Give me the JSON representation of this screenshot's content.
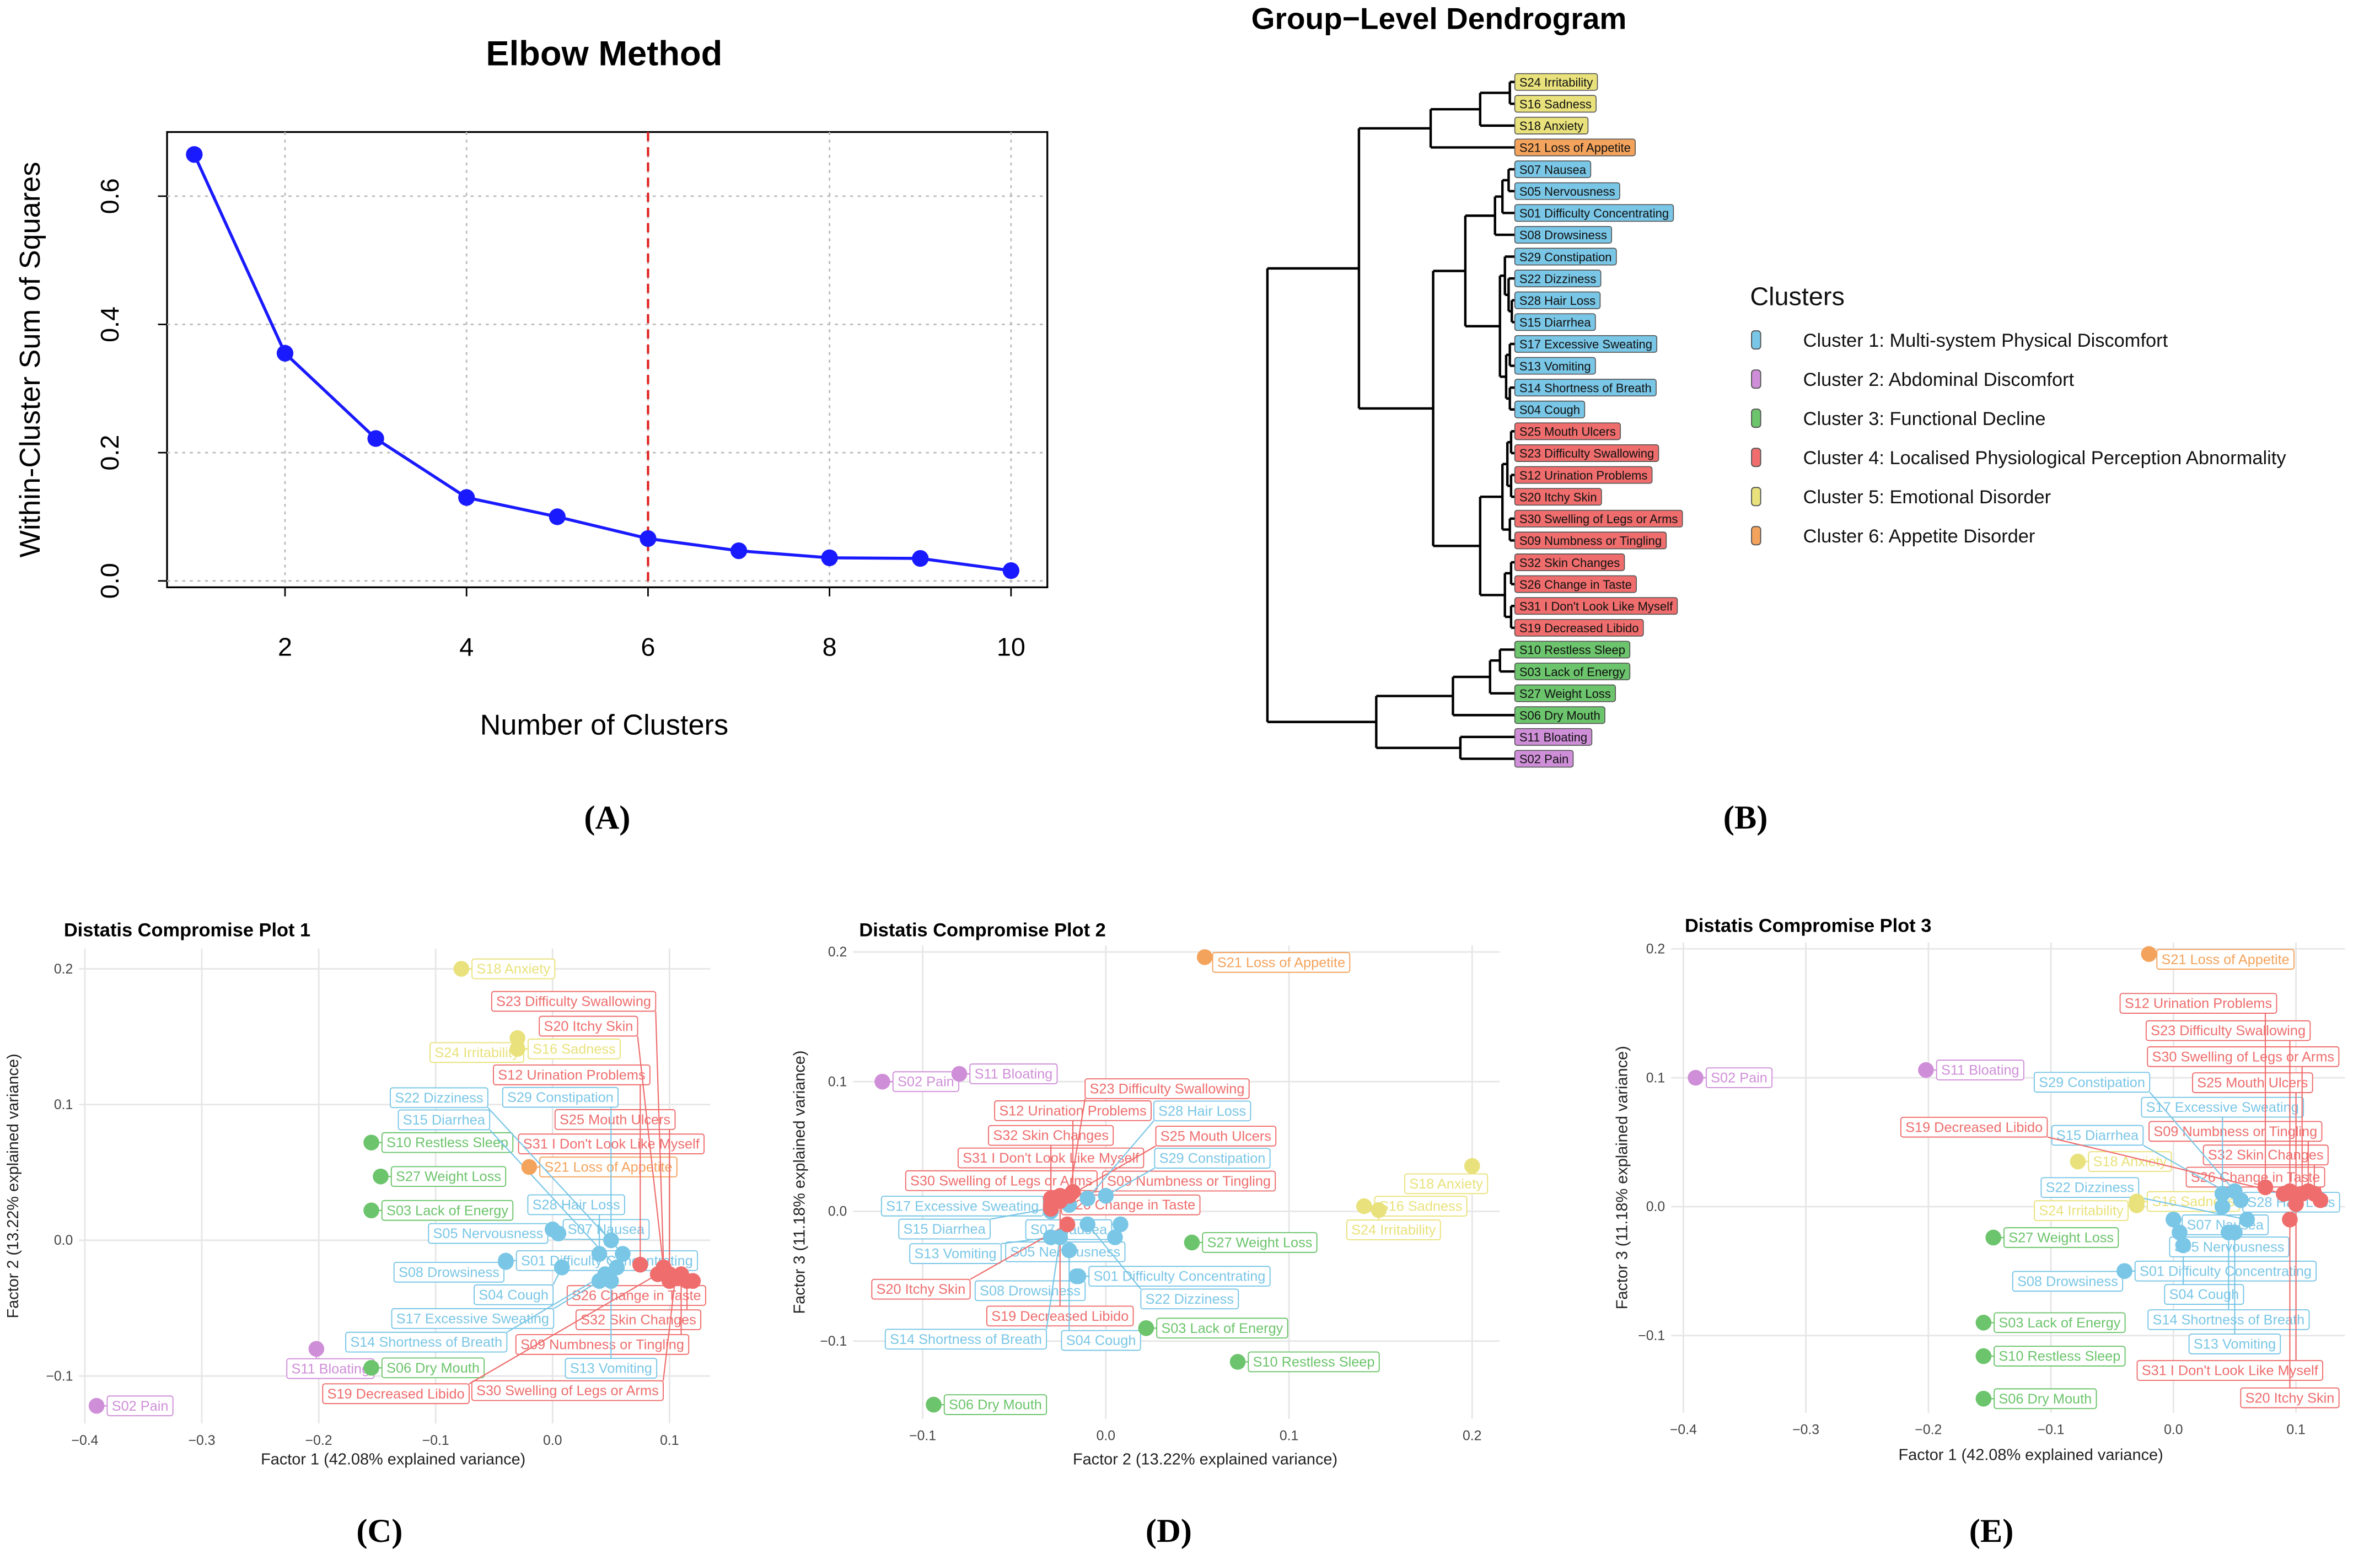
{
  "panels": {
    "a": "(A)",
    "b": "(B)",
    "c": "(C)",
    "d": "(D)",
    "e": "(E)"
  },
  "colors": {
    "cluster_1": "#79c6e6",
    "cluster_2": "#cf8fd8",
    "cluster_3": "#6cc46c",
    "cluster_4": "#ef6d6d",
    "cluster_5": "#e9e27c",
    "cluster_6": "#f4a35c",
    "elbow_line": "#1a1aff",
    "elbow_cut": "#e02020"
  },
  "chart_data": [
    {
      "type": "line",
      "title": "Elbow Method",
      "xlabel": "Number of Clusters",
      "ylabel": "Within-Cluster Sum of Squares",
      "x": [
        1,
        2,
        3,
        4,
        5,
        6,
        7,
        8,
        9,
        10
      ],
      "y": [
        0.665,
        0.355,
        0.222,
        0.13,
        0.1,
        0.066,
        0.047,
        0.036,
        0.035,
        0.016
      ],
      "xticks": [
        "2",
        "4",
        "6",
        "8",
        "10"
      ],
      "yticks": [
        "0.0",
        "0.2",
        "0.4",
        "0.6"
      ],
      "xlim": [
        0.7,
        10.4
      ],
      "ylim": [
        -0.01,
        0.7
      ],
      "vline_x": 6
    },
    {
      "type": "dendrogram",
      "title": "Group−Level Dendrogram",
      "leaves": [
        {
          "label": "S24 Irritability",
          "cluster": 5
        },
        {
          "label": "S16 Sadness",
          "cluster": 5
        },
        {
          "label": "S18 Anxiety",
          "cluster": 5
        },
        {
          "label": "S21 Loss of Appetite",
          "cluster": 6
        },
        {
          "label": "S07 Nausea",
          "cluster": 1
        },
        {
          "label": "S05 Nervousness",
          "cluster": 1
        },
        {
          "label": "S01 Difficulty Concentrating",
          "cluster": 1
        },
        {
          "label": "S08 Drowsiness",
          "cluster": 1
        },
        {
          "label": "S29 Constipation",
          "cluster": 1
        },
        {
          "label": "S22 Dizziness",
          "cluster": 1
        },
        {
          "label": "S28 Hair Loss",
          "cluster": 1
        },
        {
          "label": "S15 Diarrhea",
          "cluster": 1
        },
        {
          "label": "S17 Excessive Sweating",
          "cluster": 1
        },
        {
          "label": "S13 Vomiting",
          "cluster": 1
        },
        {
          "label": "S14 Shortness of Breath",
          "cluster": 1
        },
        {
          "label": "S04 Cough",
          "cluster": 1
        },
        {
          "label": "S25 Mouth Ulcers",
          "cluster": 4
        },
        {
          "label": "S23 Difficulty Swallowing",
          "cluster": 4
        },
        {
          "label": "S12 Urination Problems",
          "cluster": 4
        },
        {
          "label": "S20 Itchy Skin",
          "cluster": 4
        },
        {
          "label": "S30 Swelling of Legs or Arms",
          "cluster": 4
        },
        {
          "label": "S09 Numbness or Tingling",
          "cluster": 4
        },
        {
          "label": "S32 Skin Changes",
          "cluster": 4
        },
        {
          "label": "S26 Change in Taste",
          "cluster": 4
        },
        {
          "label": "S31 I Don't Look Like Myself",
          "cluster": 4
        },
        {
          "label": "S19 Decreased Libido",
          "cluster": 4
        },
        {
          "label": "S10 Restless Sleep",
          "cluster": 3
        },
        {
          "label": "S03 Lack of Energy",
          "cluster": 3
        },
        {
          "label": "S27 Weight Loss",
          "cluster": 3
        },
        {
          "label": "S06 Dry Mouth",
          "cluster": 3
        },
        {
          "label": "S11 Bloating",
          "cluster": 2
        },
        {
          "label": "S02 Pain",
          "cluster": 2
        }
      ],
      "tree": {
        "h": 1,
        "c": [
          {
            "h": 0.63,
            "c": [
              {
                "h": 0.34,
                "c": [
                  {
                    "h": 0.14,
                    "c": [
                      {
                        "h": 0.02,
                        "c": [
                          0,
                          1
                        ]
                      },
                      2
                    ]
                  },
                  3
                ]
              },
              {
                "h": 0.33,
                "c": [
                  {
                    "h": 0.2,
                    "c": [
                      {
                        "h": 0.08,
                        "c": [
                          {
                            "h": 0.05,
                            "c": [
                              {
                                "h": 0.025,
                                "c": [
                                  4,
                                  5
                                ]
                              },
                              6
                            ]
                          },
                          7
                        ]
                      },
                      {
                        "h": 0.06,
                        "c": [
                          {
                            "h": 0.04,
                            "c": [
                              8,
                              {
                                "h": 0.025,
                                "c": [
                                  9,
                                  {
                                    "h": 0.012,
                                    "c": [
                                      10,
                                      11
                                    ]
                                  }
                                ]
                              }
                            ]
                          },
                          {
                            "h": 0.035,
                            "c": [
                              {
                                "h": 0.02,
                                "c": [
                                  12,
                                  13
                                ]
                              },
                              {
                                "h": 0.02,
                                "c": [
                                  14,
                                  15
                                ]
                              }
                            ]
                          }
                        ]
                      }
                    ]
                  },
                  {
                    "h": 0.14,
                    "c": [
                      {
                        "h": 0.05,
                        "c": [
                          {
                            "h": 0.03,
                            "c": [
                              {
                                "h": 0.015,
                                "c": [
                                  16,
                                  17
                                ]
                              },
                              {
                                "h": 0.015,
                                "c": [
                                  18,
                                  19
                                ]
                              }
                            ]
                          },
                          {
                            "h": 0.02,
                            "c": [
                              20,
                              21
                            ]
                          }
                        ]
                      },
                      {
                        "h": 0.04,
                        "c": [
                          {
                            "h": 0.015,
                            "c": [
                              22,
                              23
                            ]
                          },
                          {
                            "h": 0.015,
                            "c": [
                              24,
                              25
                            ]
                          }
                        ]
                      }
                    ]
                  }
                ]
              }
            ]
          },
          {
            "h": 0.56,
            "c": [
              {
                "h": 0.25,
                "c": [
                  {
                    "h": 0.1,
                    "c": [
                      {
                        "h": 0.06,
                        "c": [
                          26,
                          27
                        ]
                      },
                      28
                    ]
                  },
                  29
                ]
              },
              {
                "h": 0.22,
                "c": [
                  30,
                  31
                ]
              }
            ]
          }
        ]
      },
      "legend_title": "Clusters",
      "legend": [
        {
          "label": "Cluster 1: Multi-system Physical Discomfort",
          "cluster": 1
        },
        {
          "label": "Cluster 2: Abdominal Discomfort",
          "cluster": 2
        },
        {
          "label": "Cluster 3: Functional Decline",
          "cluster": 3
        },
        {
          "label": "Cluster 4: Localised Physiological Perception Abnormality",
          "cluster": 4
        },
        {
          "label": "Cluster 5: Emotional Disorder",
          "cluster": 5
        },
        {
          "label": "Cluster 6: Appetite Disorder",
          "cluster": 6
        }
      ]
    },
    {
      "type": "scatter",
      "title": "Distatis Compromise Plot 1",
      "xfactor": "F1",
      "yfactor": "F2",
      "xlabel": "Factor 1 (42.08% explained variance)",
      "ylabel": "Factor 2 (13.22% explained variance)",
      "xticks": [
        -0.4,
        -0.3,
        -0.2,
        -0.1,
        0.0,
        0.1
      ],
      "yticks": [
        -0.1,
        0.0,
        0.1,
        0.2
      ],
      "xtick_labels": [
        "−0.4",
        "−0.3",
        "−0.2",
        "−0.1",
        "0.0",
        "0.1"
      ],
      "ytick_labels": [
        "−0.1",
        "0.0",
        "0.1",
        "0.2"
      ],
      "xlim": [
        -0.405,
        0.135
      ],
      "ylim": [
        -0.135,
        0.215
      ]
    },
    {
      "type": "scatter",
      "title": "Distatis Compromise Plot 2",
      "xfactor": "F2",
      "yfactor": "F3",
      "xlabel": "Factor 2 (13.22% explained variance)",
      "ylabel": "Factor 3 (11.18% explained variance)",
      "xticks": [
        -0.1,
        0.0,
        0.1,
        0.2
      ],
      "yticks": [
        -0.1,
        0.0,
        0.1,
        0.2
      ],
      "xtick_labels": [
        "−0.1",
        "0.0",
        "0.1",
        "0.2"
      ],
      "ytick_labels": [
        "−0.1",
        "0.0",
        "0.1",
        "0.2"
      ],
      "xlim": [
        -0.138,
        0.215
      ],
      "ylim": [
        -0.16,
        0.205
      ]
    },
    {
      "type": "scatter",
      "title": "Distatis Compromise Plot 3",
      "xfactor": "F1",
      "yfactor": "F3",
      "xlabel": "Factor 1 (42.08% explained variance)",
      "ylabel": "Factor 3 (11.18% explained variance)",
      "xticks": [
        -0.4,
        -0.3,
        -0.2,
        -0.1,
        0.0,
        0.1
      ],
      "yticks": [
        -0.1,
        0.0,
        0.1,
        0.2
      ],
      "xtick_labels": [
        "−0.4",
        "−0.3",
        "−0.2",
        "−0.1",
        "0.0",
        "0.1"
      ],
      "ytick_labels": [
        "−0.1",
        "0.0",
        "0.1",
        "0.2"
      ],
      "xlim": [
        -0.41,
        0.14
      ],
      "ylim": [
        -0.16,
        0.205
      ]
    }
  ],
  "symptoms": [
    {
      "label": "S01 Difficulty Concentrating",
      "cluster": 1,
      "F1": -0.04,
      "F2": -0.015,
      "F3": -0.05
    },
    {
      "label": "S02 Pain",
      "cluster": 2,
      "F1": -0.39,
      "F2": -0.122,
      "F3": 0.1
    },
    {
      "label": "S03 Lack of Energy",
      "cluster": 3,
      "F1": -0.155,
      "F2": 0.022,
      "F3": -0.09
    },
    {
      "label": "S04 Cough",
      "cluster": 1,
      "F1": 0.008,
      "F2": -0.02,
      "F3": -0.03
    },
    {
      "label": "S05 Nervousness",
      "cluster": 1,
      "F1": 0.005,
      "F2": 0.005,
      "F3": -0.02
    },
    {
      "label": "S06 Dry Mouth",
      "cluster": 3,
      "F1": -0.155,
      "F2": -0.094,
      "F3": -0.149
    },
    {
      "label": "S07 Nausea",
      "cluster": 1,
      "F1": 0.0,
      "F2": 0.008,
      "F3": -0.01
    },
    {
      "label": "S08 Drowsiness",
      "cluster": 1,
      "F1": -0.04,
      "F2": -0.016,
      "F3": -0.05
    },
    {
      "label": "S09 Numbness or Tingling",
      "cluster": 4,
      "F1": 0.11,
      "F2": -0.025,
      "F3": 0.012
    },
    {
      "label": "S10 Restless Sleep",
      "cluster": 3,
      "F1": -0.155,
      "F2": 0.072,
      "F3": -0.116
    },
    {
      "label": "S11 Bloating",
      "cluster": 2,
      "F1": -0.202,
      "F2": -0.08,
      "F3": 0.106
    },
    {
      "label": "S12 Urination Problems",
      "cluster": 4,
      "F1": 0.075,
      "F2": -0.018,
      "F3": 0.015
    },
    {
      "label": "S13 Vomiting",
      "cluster": 1,
      "F1": 0.05,
      "F2": -0.03,
      "F3": -0.02
    },
    {
      "label": "S14 Shortness of Breath",
      "cluster": 1,
      "F1": 0.045,
      "F2": -0.025,
      "F3": -0.02
    },
    {
      "label": "S15 Diarrhea",
      "cluster": 1,
      "F1": 0.055,
      "F2": -0.02,
      "F3": 0.005
    },
    {
      "label": "S16 Sadness",
      "cluster": 5,
      "F1": -0.03,
      "F2": 0.141,
      "F3": 0.004
    },
    {
      "label": "S17 Excessive Sweating",
      "cluster": 1,
      "F1": 0.04,
      "F2": -0.03,
      "F3": 0.0
    },
    {
      "label": "S18 Anxiety",
      "cluster": 5,
      "F1": -0.078,
      "F2": 0.2,
      "F3": 0.035
    },
    {
      "label": "S19 Decreased Libido",
      "cluster": 4,
      "F1": 0.09,
      "F2": -0.025,
      "F3": 0.01
    },
    {
      "label": "S20 Itchy Skin",
      "cluster": 4,
      "F1": 0.095,
      "F2": -0.021,
      "F3": -0.01
    },
    {
      "label": "S21 Loss of Appetite",
      "cluster": 6,
      "F1": -0.02,
      "F2": 0.054,
      "F3": 0.196
    },
    {
      "label": "S22 Dizziness",
      "cluster": 1,
      "F1": 0.06,
      "F2": -0.01,
      "F3": -0.01
    },
    {
      "label": "S23 Difficulty Swallowing",
      "cluster": 4,
      "F1": 0.095,
      "F2": -0.02,
      "F3": 0.012
    },
    {
      "label": "S24 Irritability",
      "cluster": 5,
      "F1": -0.03,
      "F2": 0.149,
      "F3": 0.001
    },
    {
      "label": "S25 Mouth Ulcers",
      "cluster": 4,
      "F1": 0.1,
      "F2": -0.025,
      "F3": 0.008
    },
    {
      "label": "S26 Change in Taste",
      "cluster": 4,
      "F1": 0.12,
      "F2": -0.03,
      "F3": 0.005
    },
    {
      "label": "S27 Weight Loss",
      "cluster": 3,
      "F1": -0.147,
      "F2": 0.047,
      "F3": -0.024
    },
    {
      "label": "S28 Hair Loss",
      "cluster": 1,
      "F1": 0.04,
      "F2": -0.01,
      "F3": 0.01
    },
    {
      "label": "S29 Constipation",
      "cluster": 1,
      "F1": 0.05,
      "F2": 0.0,
      "F3": 0.012
    },
    {
      "label": "S30 Swelling of Legs or Arms",
      "cluster": 4,
      "F1": 0.105,
      "F2": -0.028,
      "F3": 0.01
    },
    {
      "label": "S31 I Don't Look Like Myself",
      "cluster": 4,
      "F1": 0.1,
      "F2": -0.03,
      "F3": 0.002
    },
    {
      "label": "S32 Skin Changes",
      "cluster": 4,
      "F1": 0.115,
      "F2": -0.03,
      "F3": 0.01
    }
  ]
}
